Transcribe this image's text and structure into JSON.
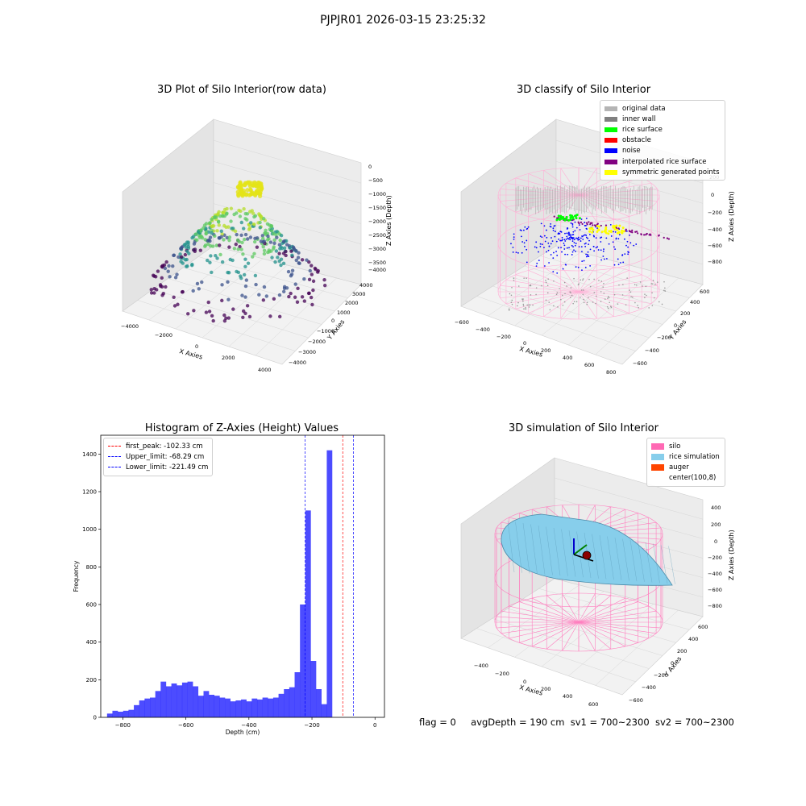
{
  "suptitle": "PJPJR01 2026-03-15 23:25:32",
  "panels": {
    "raw": {
      "title": "3D Plot of Silo Interior(row data)",
      "xlabel": "X Axies",
      "ylabel": "Y Axies",
      "zlabel": "Z Axies (Depth)",
      "xticks": [
        "−4000",
        "−2000",
        "0",
        "2000",
        "4000"
      ],
      "yticks": [
        "−4000",
        "−3000",
        "−2000",
        "−1000",
        "0",
        "1000",
        "2000",
        "3000",
        "4000"
      ],
      "zticks": [
        "0",
        "−500",
        "−1000",
        "−1500",
        "−2000",
        "−2500",
        "−3000",
        "−3500",
        "−4000"
      ],
      "colormap": "viridis"
    },
    "classify": {
      "title": "3D classify of Silo Interior",
      "xlabel": "X Axies",
      "ylabel": "Y Axies",
      "zlabel": "Z Axies (Depth)",
      "xticks": [
        "−600",
        "−400",
        "−200",
        "0",
        "200",
        "400",
        "600",
        "800"
      ],
      "yticks": [
        "−600",
        "−400",
        "−200",
        "0",
        "200",
        "400",
        "600"
      ],
      "zticks": [
        "200",
        "0",
        "−200",
        "−400",
        "−600",
        "−800"
      ],
      "legend": [
        {
          "label": "original data",
          "color": "#b4b4b4"
        },
        {
          "label": "inner wall",
          "color": "#808080"
        },
        {
          "label": "rice surface",
          "color": "#00ff00"
        },
        {
          "label": "obstacle",
          "color": "#ff0000"
        },
        {
          "label": "noise",
          "color": "#0000ff"
        },
        {
          "label": "interpolated rice surface",
          "color": "#800080"
        },
        {
          "label": "symmetric generated points",
          "color": "#ffff00"
        }
      ]
    },
    "simulation": {
      "title": "3D simulation of Silo Interior",
      "xlabel": "X Axies",
      "ylabel": "Y Axies",
      "zlabel": "Z Axies (Depth)",
      "xticks": [
        "−400",
        "−200",
        "0",
        "200",
        "400",
        "600"
      ],
      "yticks": [
        "−600",
        "−400",
        "−200",
        "0",
        "200",
        "400",
        "600"
      ],
      "zticks": [
        "400",
        "200",
        "0",
        "−200",
        "−400",
        "−600",
        "−800"
      ],
      "legend": [
        {
          "label": "silo",
          "color": "#ff69b4"
        },
        {
          "label": "rice simulation",
          "color": "#87ceeb"
        },
        {
          "label": "auger",
          "color": "#ff4500"
        },
        {
          "label": "center(100,8)",
          "color": "#ffffff"
        }
      ]
    }
  },
  "chart_data": {
    "type": "bar",
    "title": "Histogram of Z-Axies (Height) Values",
    "xlabel": "Depth (cm)",
    "ylabel": "Frequency",
    "xlim": [
      -870,
      30
    ],
    "ylim": [
      0,
      1500
    ],
    "xticks": [
      -800,
      -600,
      -400,
      -200,
      0
    ],
    "yticks": [
      0,
      200,
      400,
      600,
      800,
      1000,
      1200,
      1400
    ],
    "bar_color": "#0000ff",
    "bin_start": -850,
    "bin_width": 17,
    "values": [
      20,
      35,
      30,
      35,
      40,
      65,
      90,
      100,
      105,
      140,
      190,
      165,
      180,
      170,
      185,
      190,
      165,
      115,
      140,
      120,
      115,
      105,
      100,
      85,
      90,
      95,
      85,
      100,
      95,
      105,
      100,
      105,
      125,
      150,
      160,
      240,
      600,
      1100,
      300,
      150,
      70,
      1420
    ],
    "legend_position": "upper left",
    "lines": [
      {
        "label": "first_peak: -102.33 cm",
        "x": -102.33,
        "color": "#ff0000"
      },
      {
        "label": "Upper_limit: -68.29 cm",
        "x": -68.29,
        "color": "#0000ff"
      },
      {
        "label": "Lower_limit: -221.49 cm",
        "x": -221.49,
        "color": "#0000ff"
      }
    ]
  },
  "status": {
    "flag": "flag = 0",
    "avg_depth": "avgDepth = 190 cm",
    "sv1": "sv1 = 700~2300",
    "sv2": "sv2 = 700~2300"
  }
}
